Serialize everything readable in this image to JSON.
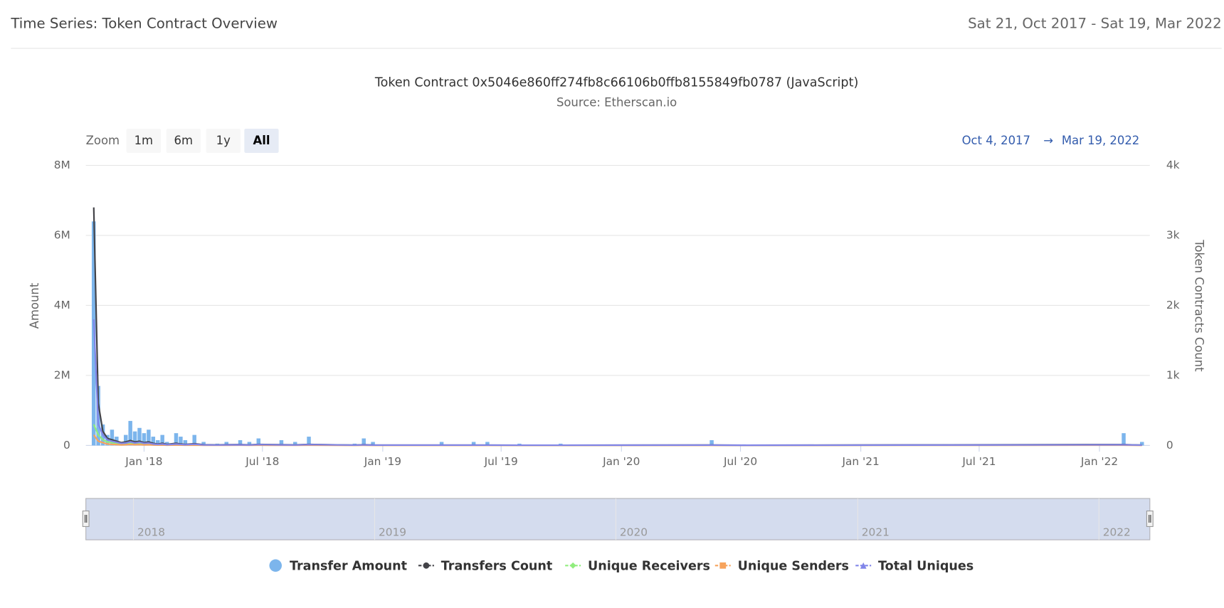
{
  "header": {
    "title": "Time Series: Token Contract Overview",
    "date_range": "Sat 21, Oct 2017 - Sat 19, Mar 2022"
  },
  "chart_data": {
    "type": "bar-line",
    "title": "Token Contract 0x5046e860ff274fb8c66106b0ffb8155849fb0787 (JavaScript)",
    "subtitle": "Source: Etherscan.io",
    "zoom": {
      "label": "Zoom",
      "buttons": [
        "1m",
        "6m",
        "1y",
        "All"
      ],
      "selected": 3
    },
    "range": {
      "from": "Oct 4, 2017",
      "arrow": "→",
      "to": "Mar 19, 2022"
    },
    "y_label": "Amount",
    "y2_label": "Token Contracts Count",
    "xlim": [
      "2017-10-04",
      "2022-03-19"
    ],
    "xticks": [
      {
        "value": "2018-01-01",
        "label": "Jan '18"
      },
      {
        "value": "2018-07-01",
        "label": "Jul '18"
      },
      {
        "value": "2019-01-01",
        "label": "Jan '19"
      },
      {
        "value": "2019-07-01",
        "label": "Jul '19"
      },
      {
        "value": "2020-01-01",
        "label": "Jan '20"
      },
      {
        "value": "2020-07-01",
        "label": "Jul '20"
      },
      {
        "value": "2021-01-01",
        "label": "Jan '21"
      },
      {
        "value": "2021-07-01",
        "label": "Jul '21"
      },
      {
        "value": "2022-01-01",
        "label": "Jan '22"
      }
    ],
    "ylim": [
      0,
      8000000
    ],
    "yticks": [
      0,
      {
        "value": 2000000,
        "label": "2M"
      },
      {
        "value": 4000000,
        "label": "4M"
      },
      {
        "value": 6000000,
        "label": "6M"
      },
      {
        "value": 8000000,
        "label": "8M"
      }
    ],
    "y2lim": [
      0,
      4000
    ],
    "y2ticks": [
      0,
      {
        "value": 1000,
        "label": "1k"
      },
      {
        "value": 2000,
        "label": "2k"
      },
      {
        "value": 3000,
        "label": "3k"
      },
      {
        "value": 4000,
        "label": "4k"
      }
    ],
    "grid": true,
    "x": [
      "2017-10-16",
      "2017-10-23",
      "2017-10-30",
      "2017-11-06",
      "2017-11-13",
      "2017-11-20",
      "2017-11-27",
      "2017-12-04",
      "2017-12-11",
      "2017-12-18",
      "2017-12-25",
      "2018-01-01",
      "2018-01-08",
      "2018-01-15",
      "2018-01-22",
      "2018-01-29",
      "2018-02-05",
      "2018-02-19",
      "2018-02-26",
      "2018-03-05",
      "2018-03-19",
      "2018-04-02",
      "2018-04-23",
      "2018-05-07",
      "2018-05-28",
      "2018-06-11",
      "2018-06-25",
      "2018-07-30",
      "2018-08-20",
      "2018-09-10",
      "2018-11-19",
      "2018-12-03",
      "2018-12-17",
      "2019-04-01",
      "2019-05-20",
      "2019-06-10",
      "2019-07-29",
      "2019-09-30",
      "2020-05-18",
      "2020-07-06",
      "2022-02-07",
      "2022-03-07"
    ],
    "series": [
      {
        "name": "Transfer Amount",
        "kind": "bar",
        "color": "#7cb5ec",
        "values": [
          6400000,
          1700000,
          600000,
          300000,
          450000,
          250000,
          100000,
          300000,
          700000,
          400000,
          500000,
          350000,
          450000,
          250000,
          150000,
          300000,
          100000,
          350000,
          250000,
          150000,
          300000,
          100000,
          50000,
          100000,
          150000,
          100000,
          200000,
          150000,
          100000,
          250000,
          50000,
          200000,
          100000,
          100000,
          100000,
          100000,
          50000,
          50000,
          150000,
          30000,
          350000,
          100000
        ]
      },
      {
        "name": "Transfers Count",
        "kind": "line",
        "axis": "y2",
        "color": "#434348",
        "marker": "circle",
        "values": [
          3400,
          600,
          200,
          100,
          80,
          60,
          40,
          50,
          70,
          50,
          60,
          40,
          50,
          30,
          20,
          30,
          15,
          30,
          20,
          15,
          25,
          10,
          8,
          10,
          12,
          8,
          15,
          10,
          8,
          15,
          5,
          10,
          6,
          5,
          5,
          5,
          3,
          3,
          6,
          2,
          12,
          5
        ]
      },
      {
        "name": "Unique Receivers",
        "kind": "line",
        "axis": "y2",
        "color": "#90ed7d",
        "marker": "diamond",
        "values": [
          300,
          150,
          80,
          50,
          40,
          30,
          20,
          25,
          35,
          25,
          30,
          20,
          25,
          15,
          10,
          15,
          8,
          15,
          10,
          8,
          12,
          5,
          4,
          5,
          6,
          4,
          8,
          5,
          4,
          8,
          3,
          5,
          3,
          3,
          3,
          3,
          2,
          2,
          3,
          1,
          6,
          3
        ]
      },
      {
        "name": "Unique Senders",
        "kind": "line",
        "axis": "y2",
        "color": "#f7a35c",
        "marker": "square",
        "values": [
          150,
          60,
          40,
          20,
          15,
          12,
          8,
          10,
          15,
          10,
          12,
          8,
          10,
          6,
          4,
          6,
          3,
          6,
          4,
          3,
          5,
          2,
          2,
          2,
          3,
          2,
          3,
          2,
          2,
          3,
          1,
          2,
          1,
          1,
          1,
          1,
          1,
          1,
          1,
          1,
          3,
          1
        ]
      },
      {
        "name": "Total Uniques",
        "kind": "line",
        "axis": "y2",
        "color": "#8085e9",
        "marker": "triangle",
        "values": [
          1800,
          300,
          150,
          80,
          60,
          45,
          30,
          35,
          50,
          35,
          45,
          30,
          35,
          20,
          15,
          20,
          10,
          20,
          15,
          10,
          18,
          8,
          6,
          8,
          9,
          6,
          12,
          8,
          6,
          12,
          4,
          8,
          5,
          4,
          4,
          4,
          3,
          3,
          5,
          2,
          9,
          4
        ]
      }
    ],
    "navigator": {
      "xlim": [
        "2017-10-21",
        "2022-03-19"
      ],
      "xticks": [
        {
          "value": "2018-01-01",
          "label": "2018"
        },
        {
          "value": "2019-01-01",
          "label": "2019"
        },
        {
          "value": "2020-01-01",
          "label": "2020"
        },
        {
          "value": "2021-01-01",
          "label": "2021"
        },
        {
          "value": "2022-01-01",
          "label": "2022"
        }
      ]
    }
  }
}
